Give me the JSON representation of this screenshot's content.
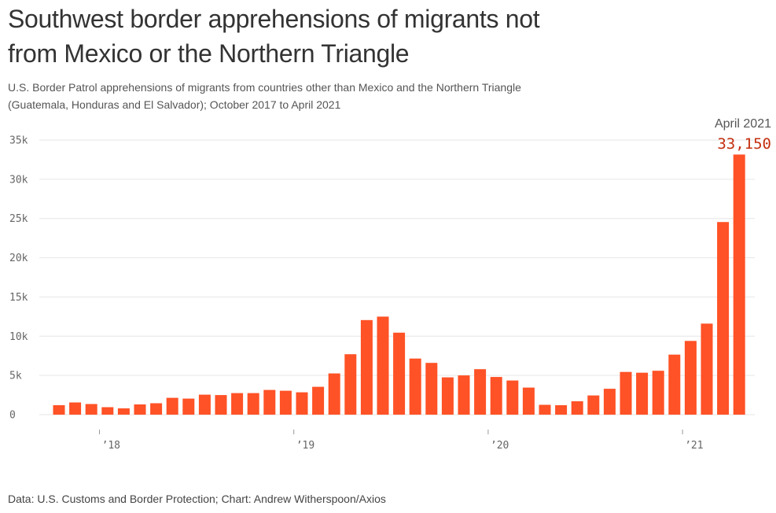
{
  "title": "Southwest border apprehensions of migrants not from Mexico or the Northern Triangle",
  "subtitle": "U.S. Border Patrol apprehensions of migrants from countries other than Mexico and the Northern Triangle (Guatemala, Honduras and El Salvador); October 2017 to April 2021",
  "source": "Data: U.S. Customs and Border Protection; Chart: Andrew Witherspoon/Axios",
  "colors": {
    "bar": "#ff5226",
    "annotation": "#c42f10",
    "grid": "#e6e6e6"
  },
  "annotation": {
    "label": "April 2021",
    "value": "33,150"
  },
  "chart_data": {
    "type": "bar",
    "xlabel": "",
    "ylabel": "",
    "ylim": [
      0,
      35000
    ],
    "y_ticks": [
      0,
      5000,
      10000,
      15000,
      20000,
      25000,
      30000,
      35000
    ],
    "y_tick_labels": [
      "0",
      "5k",
      "10k",
      "15k",
      "20k",
      "25k",
      "30k",
      "35k"
    ],
    "x_tick_labels": [
      "’18",
      "’19",
      "’20",
      "’21"
    ],
    "x_tick_months": [
      "2018-01",
      "2019-01",
      "2020-01",
      "2021-01"
    ],
    "grid": true,
    "categories": [
      "2017-10",
      "2017-11",
      "2017-12",
      "2018-01",
      "2018-02",
      "2018-03",
      "2018-04",
      "2018-05",
      "2018-06",
      "2018-07",
      "2018-08",
      "2018-09",
      "2018-10",
      "2018-11",
      "2018-12",
      "2019-01",
      "2019-02",
      "2019-03",
      "2019-04",
      "2019-05",
      "2019-06",
      "2019-07",
      "2019-08",
      "2019-09",
      "2019-10",
      "2019-11",
      "2019-12",
      "2020-01",
      "2020-02",
      "2020-03",
      "2020-04",
      "2020-05",
      "2020-06",
      "2020-07",
      "2020-08",
      "2020-09",
      "2020-10",
      "2020-11",
      "2020-12",
      "2021-01",
      "2021-02",
      "2021-03",
      "2021-04"
    ],
    "values": [
      1200,
      1550,
      1350,
      950,
      800,
      1300,
      1450,
      2150,
      2050,
      2550,
      2500,
      2750,
      2750,
      3150,
      3050,
      2850,
      3550,
      5250,
      7700,
      12050,
      12500,
      10450,
      7150,
      6600,
      4750,
      5000,
      5800,
      4800,
      4350,
      3450,
      1250,
      1200,
      1700,
      2450,
      3300,
      5450,
      5350,
      5600,
      7650,
      9400,
      11600,
      24550,
      33150
    ]
  }
}
